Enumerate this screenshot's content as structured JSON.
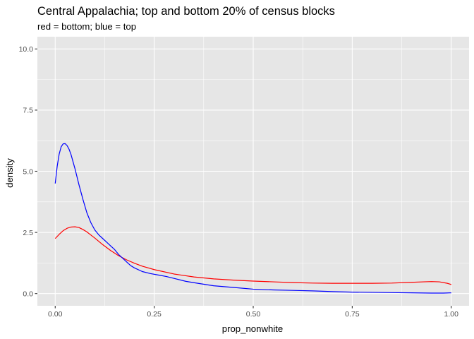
{
  "chart_data": {
    "type": "line",
    "title": "Central Appalachia; top and bottom 20% of census blocks",
    "subtitle": "red = bottom; blue = top",
    "xlabel": "prop_nonwhite",
    "ylabel": "density",
    "xlim": [
      -0.045,
      1.045
    ],
    "ylim": [
      -0.5,
      10.5
    ],
    "x_ticks": [
      0.0,
      0.25,
      0.5,
      0.75,
      1.0
    ],
    "x_tick_labels": [
      "0.00",
      "0.25",
      "0.50",
      "0.75",
      "1.00"
    ],
    "y_ticks": [
      0.0,
      2.5,
      5.0,
      7.5,
      10.0
    ],
    "y_tick_labels": [
      "0.0",
      "2.5",
      "5.0",
      "7.5",
      "10.0"
    ],
    "grid": true,
    "panel_background": "#e6e6e6",
    "grid_major_color": "#ffffff",
    "series": [
      {
        "color": "#ff0000",
        "x": [
          0.0,
          0.01,
          0.02,
          0.03,
          0.04,
          0.05,
          0.06,
          0.07,
          0.08,
          0.1,
          0.12,
          0.14,
          0.16,
          0.18,
          0.2,
          0.22,
          0.25,
          0.3,
          0.35,
          0.4,
          0.45,
          0.5,
          0.55,
          0.6,
          0.65,
          0.7,
          0.75,
          0.8,
          0.85,
          0.9,
          0.93,
          0.95,
          0.97,
          0.99,
          1.0
        ],
        "y": [
          2.25,
          2.42,
          2.57,
          2.67,
          2.72,
          2.73,
          2.7,
          2.62,
          2.52,
          2.27,
          2.0,
          1.76,
          1.55,
          1.38,
          1.24,
          1.12,
          0.98,
          0.8,
          0.68,
          0.6,
          0.55,
          0.51,
          0.48,
          0.45,
          0.43,
          0.42,
          0.42,
          0.42,
          0.43,
          0.46,
          0.48,
          0.49,
          0.48,
          0.42,
          0.37
        ]
      },
      {
        "color": "#0000ff",
        "x": [
          0.0,
          0.005,
          0.01,
          0.015,
          0.02,
          0.025,
          0.03,
          0.035,
          0.04,
          0.05,
          0.06,
          0.07,
          0.08,
          0.09,
          0.1,
          0.11,
          0.12,
          0.13,
          0.14,
          0.15,
          0.16,
          0.17,
          0.18,
          0.19,
          0.2,
          0.22,
          0.24,
          0.26,
          0.28,
          0.3,
          0.33,
          0.36,
          0.4,
          0.45,
          0.5,
          0.55,
          0.6,
          0.65,
          0.7,
          0.75,
          0.8,
          0.85,
          0.9,
          0.95,
          0.98,
          1.0
        ],
        "y": [
          4.5,
          5.2,
          5.7,
          6.0,
          6.12,
          6.13,
          6.05,
          5.9,
          5.68,
          5.1,
          4.45,
          3.85,
          3.3,
          2.9,
          2.6,
          2.4,
          2.25,
          2.1,
          1.95,
          1.8,
          1.6,
          1.45,
          1.3,
          1.15,
          1.05,
          0.9,
          0.82,
          0.76,
          0.7,
          0.62,
          0.5,
          0.42,
          0.32,
          0.25,
          0.18,
          0.15,
          0.13,
          0.11,
          0.08,
          0.06,
          0.05,
          0.04,
          0.03,
          0.02,
          0.02,
          0.03
        ]
      }
    ]
  }
}
